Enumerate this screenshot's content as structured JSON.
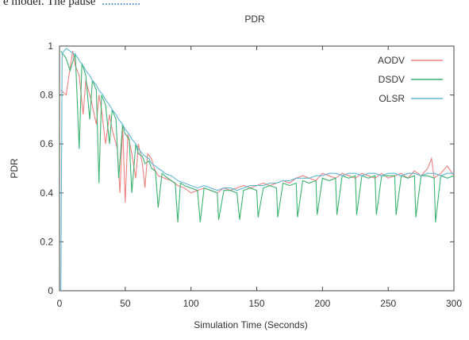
{
  "page_fragment": {
    "text": "e model. The pause",
    "link_text": "............."
  },
  "chart_data": {
    "type": "line",
    "title": "PDR",
    "xlabel": "Simulation Time (Seconds)",
    "ylabel": "PDR",
    "xlim": [
      0,
      300
    ],
    "ylim": [
      0,
      1
    ],
    "x_ticks": [
      "0",
      "50",
      "100",
      "150",
      "200",
      "250",
      "300"
    ],
    "y_ticks": [
      "0",
      "0.2",
      "0.4",
      "0.6",
      "0.8",
      "1"
    ],
    "grid": false,
    "legend_position": "top-right",
    "series": [
      {
        "name": "AODV",
        "color": "#f08080",
        "x": [
          1,
          5,
          10,
          12,
          15,
          18,
          20,
          24,
          28,
          30,
          32,
          35,
          38,
          40,
          44,
          46,
          48,
          50,
          52,
          55,
          58,
          60,
          63,
          65,
          67,
          70,
          72,
          75,
          80,
          85,
          90,
          95,
          100,
          105,
          110,
          115,
          120,
          125,
          130,
          135,
          140,
          145,
          150,
          155,
          160,
          165,
          170,
          175,
          180,
          185,
          190,
          195,
          200,
          205,
          210,
          215,
          220,
          225,
          230,
          235,
          240,
          245,
          250,
          255,
          260,
          265,
          270,
          275,
          280,
          283,
          285,
          290,
          295,
          300
        ],
        "y": [
          0.82,
          0.8,
          0.98,
          0.92,
          0.88,
          0.72,
          0.86,
          0.78,
          0.68,
          0.8,
          0.74,
          0.6,
          0.72,
          0.66,
          0.58,
          0.4,
          0.68,
          0.36,
          0.64,
          0.56,
          0.46,
          0.6,
          0.52,
          0.42,
          0.56,
          0.54,
          0.5,
          0.47,
          0.46,
          0.45,
          0.43,
          0.42,
          0.4,
          0.41,
          0.42,
          0.41,
          0.4,
          0.42,
          0.41,
          0.42,
          0.43,
          0.42,
          0.43,
          0.44,
          0.43,
          0.44,
          0.45,
          0.44,
          0.46,
          0.47,
          0.46,
          0.45,
          0.48,
          0.47,
          0.46,
          0.48,
          0.47,
          0.46,
          0.48,
          0.47,
          0.46,
          0.48,
          0.46,
          0.47,
          0.48,
          0.46,
          0.49,
          0.47,
          0.5,
          0.54,
          0.46,
          0.48,
          0.51,
          0.47
        ]
      },
      {
        "name": "DSDV",
        "color": "#3cb371",
        "x": [
          1,
          5,
          8,
          12,
          15,
          17,
          20,
          23,
          25,
          28,
          30,
          32,
          35,
          38,
          40,
          43,
          45,
          48,
          50,
          53,
          55,
          58,
          60,
          63,
          65,
          68,
          70,
          73,
          75,
          78,
          80,
          85,
          88,
          90,
          92,
          95,
          100,
          105,
          107,
          110,
          115,
          120,
          121,
          125,
          130,
          135,
          137,
          140,
          145,
          150,
          151,
          155,
          160,
          165,
          166,
          170,
          175,
          180,
          181,
          185,
          190,
          195,
          196,
          200,
          205,
          210,
          211,
          215,
          220,
          225,
          226,
          230,
          235,
          240,
          241,
          245,
          250,
          255,
          256,
          260,
          265,
          270,
          271,
          275,
          280,
          285,
          286,
          290,
          295,
          300
        ],
        "y": [
          0.98,
          0.95,
          0.9,
          0.97,
          0.58,
          0.93,
          0.88,
          0.7,
          0.86,
          0.82,
          0.44,
          0.8,
          0.76,
          0.6,
          0.74,
          0.7,
          0.46,
          0.68,
          0.64,
          0.62,
          0.4,
          0.6,
          0.56,
          0.55,
          0.52,
          0.53,
          0.5,
          0.49,
          0.34,
          0.48,
          0.47,
          0.45,
          0.44,
          0.28,
          0.44,
          0.43,
          0.42,
          0.41,
          0.28,
          0.42,
          0.41,
          0.4,
          0.29,
          0.41,
          0.41,
          0.4,
          0.29,
          0.41,
          0.42,
          0.41,
          0.3,
          0.42,
          0.43,
          0.42,
          0.3,
          0.44,
          0.43,
          0.44,
          0.3,
          0.45,
          0.44,
          0.45,
          0.31,
          0.46,
          0.45,
          0.46,
          0.31,
          0.47,
          0.46,
          0.47,
          0.31,
          0.47,
          0.46,
          0.47,
          0.31,
          0.47,
          0.47,
          0.47,
          0.31,
          0.47,
          0.46,
          0.47,
          0.3,
          0.47,
          0.47,
          0.46,
          0.28,
          0.47,
          0.46,
          0.47
        ]
      },
      {
        "name": "OLSR",
        "color": "#5fb7d4",
        "x": [
          1,
          2,
          5,
          8,
          10,
          13,
          15,
          18,
          20,
          23,
          25,
          28,
          30,
          33,
          35,
          38,
          40,
          43,
          45,
          48,
          50,
          53,
          55,
          58,
          60,
          63,
          65,
          68,
          70,
          73,
          75,
          78,
          80,
          85,
          90,
          95,
          100,
          105,
          110,
          115,
          120,
          125,
          130,
          135,
          140,
          145,
          150,
          155,
          160,
          165,
          170,
          175,
          180,
          185,
          190,
          195,
          200,
          205,
          210,
          215,
          220,
          225,
          230,
          235,
          240,
          245,
          250,
          255,
          260,
          265,
          270,
          275,
          280,
          285,
          290,
          295,
          300
        ],
        "y": [
          0.0,
          0.97,
          0.99,
          0.98,
          0.97,
          0.96,
          0.94,
          0.92,
          0.9,
          0.88,
          0.86,
          0.84,
          0.82,
          0.8,
          0.78,
          0.76,
          0.74,
          0.72,
          0.7,
          0.68,
          0.66,
          0.64,
          0.62,
          0.6,
          0.58,
          0.56,
          0.55,
          0.54,
          0.52,
          0.51,
          0.5,
          0.49,
          0.48,
          0.47,
          0.45,
          0.44,
          0.43,
          0.42,
          0.43,
          0.42,
          0.41,
          0.42,
          0.42,
          0.41,
          0.42,
          0.43,
          0.43,
          0.43,
          0.44,
          0.44,
          0.45,
          0.45,
          0.46,
          0.46,
          0.46,
          0.47,
          0.47,
          0.48,
          0.48,
          0.47,
          0.48,
          0.48,
          0.47,
          0.48,
          0.48,
          0.47,
          0.48,
          0.48,
          0.47,
          0.48,
          0.48,
          0.47,
          0.48,
          0.48,
          0.47,
          0.48,
          0.48
        ]
      }
    ]
  }
}
